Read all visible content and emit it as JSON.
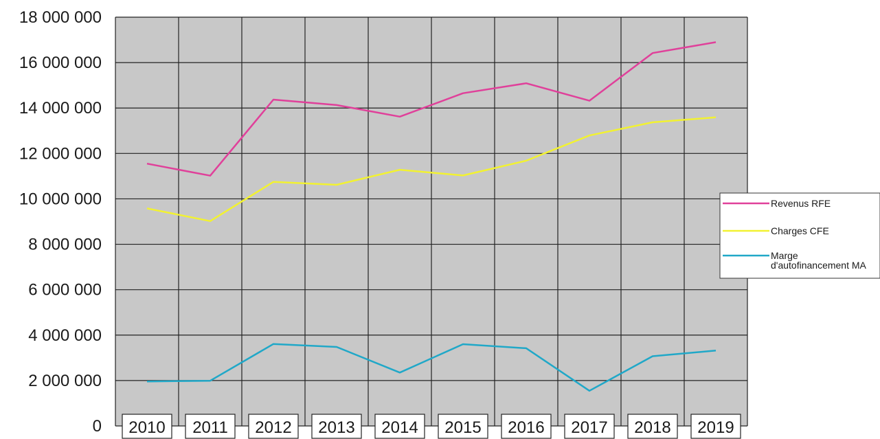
{
  "chart_data": {
    "type": "line",
    "x": [
      "2010",
      "2011",
      "2012",
      "2013",
      "2014",
      "2015",
      "2016",
      "2017",
      "2018",
      "2019"
    ],
    "ylim": [
      0,
      18000000
    ],
    "yticks": [
      0,
      2000000,
      4000000,
      6000000,
      8000000,
      10000000,
      12000000,
      14000000,
      16000000,
      18000000
    ],
    "ytick_labels": [
      "0",
      "2 000 000",
      "4 000 000",
      "6 000 000",
      "8 000 000",
      "10 000 000",
      "12 000 000",
      "14 000 000",
      "16 000 000",
      "18 000 000"
    ],
    "grid": true,
    "legend_position": "right",
    "plot_background": "#c8c8c8",
    "series": [
      {
        "name": "Revenus RFE",
        "color": "#e0409a",
        "values": [
          11550000,
          11020000,
          14370000,
          14130000,
          13620000,
          14650000,
          15090000,
          14320000,
          16420000,
          16900000
        ]
      },
      {
        "name": "Charges CFE",
        "color": "#f2f230",
        "values": [
          9580000,
          9020000,
          10750000,
          10620000,
          11280000,
          11030000,
          11680000,
          12790000,
          13370000,
          13590000
        ]
      },
      {
        "name": "Marge d'autofinancement MA",
        "name_lines": [
          "Marge",
          "d'autofinancement MA"
        ],
        "color": "#20a8c8",
        "values": [
          1960000,
          1990000,
          3610000,
          3480000,
          2350000,
          3600000,
          3420000,
          1550000,
          3070000,
          3320000
        ]
      }
    ]
  }
}
